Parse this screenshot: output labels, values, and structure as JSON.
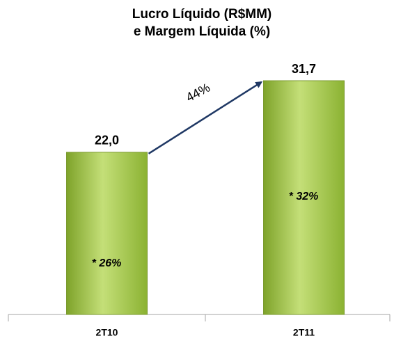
{
  "chart_data": {
    "type": "bar",
    "title": [
      "Lucro Líquido (R$MM)",
      "e Margem Líquida (%)"
    ],
    "categories": [
      "2T10",
      "2T11"
    ],
    "values": [
      22.0,
      31.7
    ],
    "value_labels": [
      "22,0",
      "31,7"
    ],
    "color": "#9bc13c",
    "arrow_color": "#1f3864",
    "annotations": [
      "44%",
      "* 26%",
      "* 32%"
    ]
  }
}
